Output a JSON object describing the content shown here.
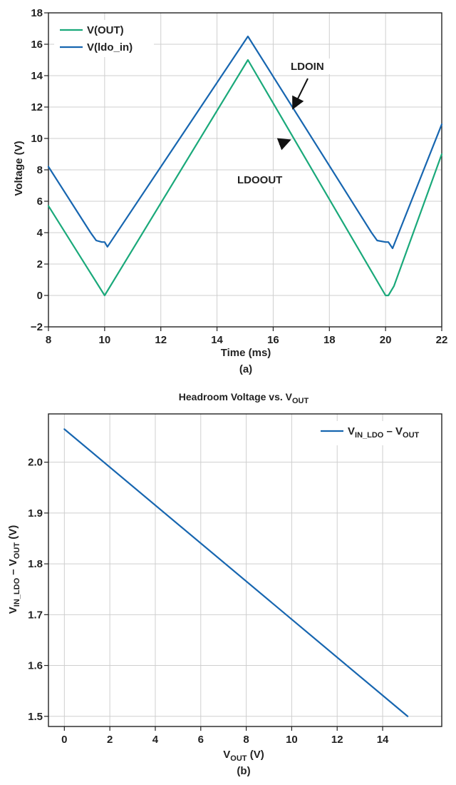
{
  "chart_data": [
    {
      "type": "line",
      "panel_label": "(a)",
      "title": "",
      "xlabel": "Time (ms)",
      "ylabel": "Voltage (V)",
      "xlim": [
        8,
        22
      ],
      "ylim": [
        -2,
        18
      ],
      "x_ticks": [
        8,
        10,
        12,
        14,
        16,
        18,
        20,
        22
      ],
      "y_ticks": [
        -2,
        0,
        2,
        4,
        6,
        8,
        10,
        12,
        14,
        16,
        18
      ],
      "grid": true,
      "legend_position": "top-left",
      "series": [
        {
          "name": "V(OUT)",
          "color": "#1aa97a",
          "x": [
            8.0,
            10.0,
            15.1,
            20.0,
            20.1,
            20.3,
            22.0
          ],
          "y": [
            5.7,
            0.0,
            15.0,
            0.0,
            0.0,
            0.6,
            9.0
          ]
        },
        {
          "name": "V(ldo_in)",
          "color": "#1766b0",
          "x": [
            8.0,
            9.5,
            9.7,
            9.9,
            10.0,
            10.1,
            15.1,
            19.5,
            19.7,
            20.0,
            20.1,
            20.25,
            22.0
          ],
          "y": [
            8.2,
            4.0,
            3.5,
            3.4,
            3.4,
            3.1,
            16.5,
            4.0,
            3.5,
            3.4,
            3.4,
            3.0,
            10.9
          ]
        }
      ],
      "annotations": [
        {
          "text": "LDOIN",
          "x": 17.2,
          "y": 14.5,
          "arrow_to": [
            16.7,
            11.9
          ]
        },
        {
          "text": "LDOOUT",
          "x": 16.3,
          "y": 7.3,
          "arrow_to": [
            16.6,
            9.9
          ]
        }
      ]
    },
    {
      "type": "line",
      "panel_label": "(b)",
      "title": "Headroom Voltage vs. V",
      "title_sub": "OUT",
      "xlabel_main": "V",
      "xlabel_sub": "OUT",
      "xlabel_tail": " (V)",
      "ylabel_main": "V",
      "ylabel_sub": "IN_LDO",
      "ylabel_mid": " – V",
      "ylabel_sub2": "OUT",
      "ylabel_tail": " (V)",
      "xlim": [
        -0.7,
        16.6
      ],
      "ylim": [
        1.48,
        2.095
      ],
      "x_ticks": [
        0,
        2,
        4,
        6,
        8,
        10,
        12,
        14
      ],
      "y_ticks": [
        1.5,
        1.6,
        1.7,
        1.8,
        1.9,
        2.0
      ],
      "grid": true,
      "legend_position": "top-right",
      "series": [
        {
          "name_main": "V",
          "name_sub": "IN_LDO",
          "name_mid": " – V",
          "name_sub2": "OUT",
          "color": "#1766b0",
          "x": [
            0.0,
            15.1
          ],
          "y": [
            2.065,
            1.5
          ]
        }
      ]
    }
  ]
}
